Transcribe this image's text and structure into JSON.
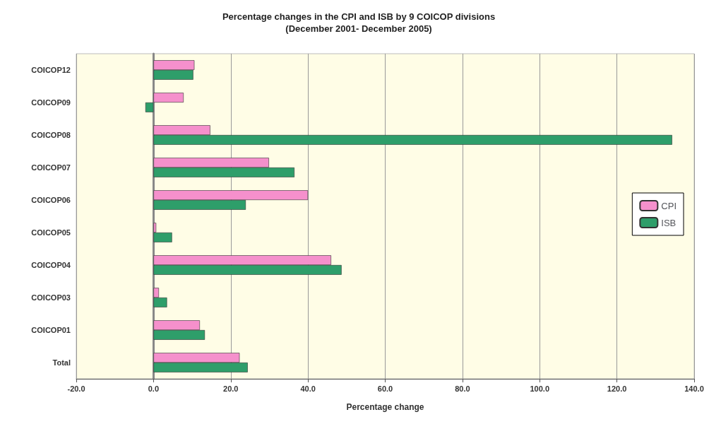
{
  "chart_data": {
    "type": "bar",
    "orientation": "horizontal",
    "title": "Percentage changes in the CPI and ISB by 9 COICOP divisions",
    "subtitle": "(December 2001- December 2005)",
    "xlabel": "Percentage change",
    "categories": [
      "COICOP12",
      "COICOP09",
      "COICOP08",
      "COICOP07",
      "COICOP06",
      "COICOP05",
      "COICOP04",
      "COICOP03",
      "COICOP01",
      "Total"
    ],
    "series": [
      {
        "name": "CPI",
        "color": "#f590cc",
        "values": [
          10.6,
          7.8,
          14.7,
          29.9,
          40.0,
          0.7,
          46.0,
          1.4,
          12.0,
          22.3
        ]
      },
      {
        "name": "ISB",
        "color": "#2e9e6a",
        "values": [
          10.3,
          -2.1,
          134.3,
          36.5,
          23.9,
          4.8,
          48.7,
          3.5,
          13.3,
          24.4
        ]
      }
    ],
    "xlim": [
      -20,
      140
    ],
    "xticks": [
      {
        "value": -20,
        "label": "-20.0"
      },
      {
        "value": 0,
        "label": "0.0"
      },
      {
        "value": 20,
        "label": "20.0"
      },
      {
        "value": 40,
        "label": "40.0"
      },
      {
        "value": 60,
        "label": "60.0"
      },
      {
        "value": 80,
        "label": "80.0"
      },
      {
        "value": 100,
        "label": "100.0"
      },
      {
        "value": 120,
        "label": "120.0"
      },
      {
        "value": 140,
        "label": "140.0"
      }
    ],
    "grid": "x",
    "legend": "right"
  }
}
